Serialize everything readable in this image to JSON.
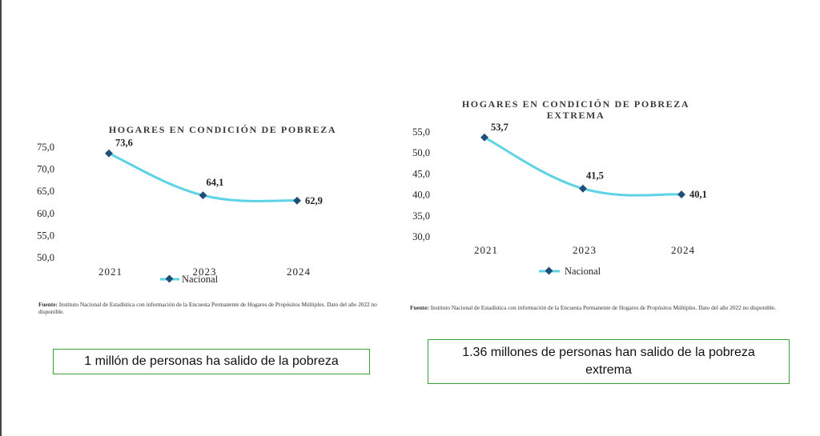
{
  "chart_data": [
    {
      "type": "line",
      "title": "HOGARES EN CONDICIÓN DE POBREZA",
      "categories": [
        "2021",
        "2023",
        "2024"
      ],
      "series": [
        {
          "name": "Nacional",
          "values": [
            73.6,
            64.1,
            62.9
          ]
        }
      ],
      "data_labels": [
        "73,6",
        "64,1",
        "62,9"
      ],
      "yticks": [
        "75,0",
        "70,0",
        "65,0",
        "60,0",
        "55,0",
        "50,0"
      ],
      "ylim": [
        50,
        75
      ],
      "xlabel": "",
      "ylabel": "",
      "legend": "bottom-center",
      "grid": false,
      "line_color": "#5fd3e6",
      "marker_color": "#1f4e79"
    },
    {
      "type": "line",
      "title": "HOGARES EN CONDICIÓN DE POBREZA EXTREMA",
      "title_lines": [
        "HOGARES EN CONDICIÓN DE POBREZA",
        "EXTREMA"
      ],
      "categories": [
        "2021",
        "2023",
        "2024"
      ],
      "series": [
        {
          "name": "Nacional",
          "values": [
            53.7,
            41.5,
            40.1
          ]
        }
      ],
      "data_labels": [
        "53,7",
        "41,5",
        "40,1"
      ],
      "yticks": [
        "55,0",
        "50,0",
        "45,0",
        "40,0",
        "35,0",
        "30,0"
      ],
      "ylim": [
        30,
        55
      ],
      "xlabel": "",
      "ylabel": "",
      "legend": "bottom-center",
      "grid": false,
      "line_color": "#5fd3e6",
      "marker_color": "#1f4e79"
    }
  ],
  "sources": [
    {
      "label": "Fuente:",
      "text": "Instituto Nacional de Estadística con información de la Encuesta Permanente de Hogares de Propósitos Múltiples. Dato del año 2022 no disponible."
    },
    {
      "label": "Fuente:",
      "text": "Instituto Nacional de Estadística con información de la Encuesta Permanente de Hogares de Propósitos Múltiples. Dato del año 2022 no disponible."
    }
  ],
  "callouts": [
    {
      "text": "1 millón de personas ha salido de la pobreza"
    },
    {
      "text": "1.36 millones de personas han salido de la pobreza extrema"
    }
  ],
  "colors": {
    "callout_border": "#3aa035",
    "line": "#5fd3e6",
    "marker": "#1f4e79"
  }
}
